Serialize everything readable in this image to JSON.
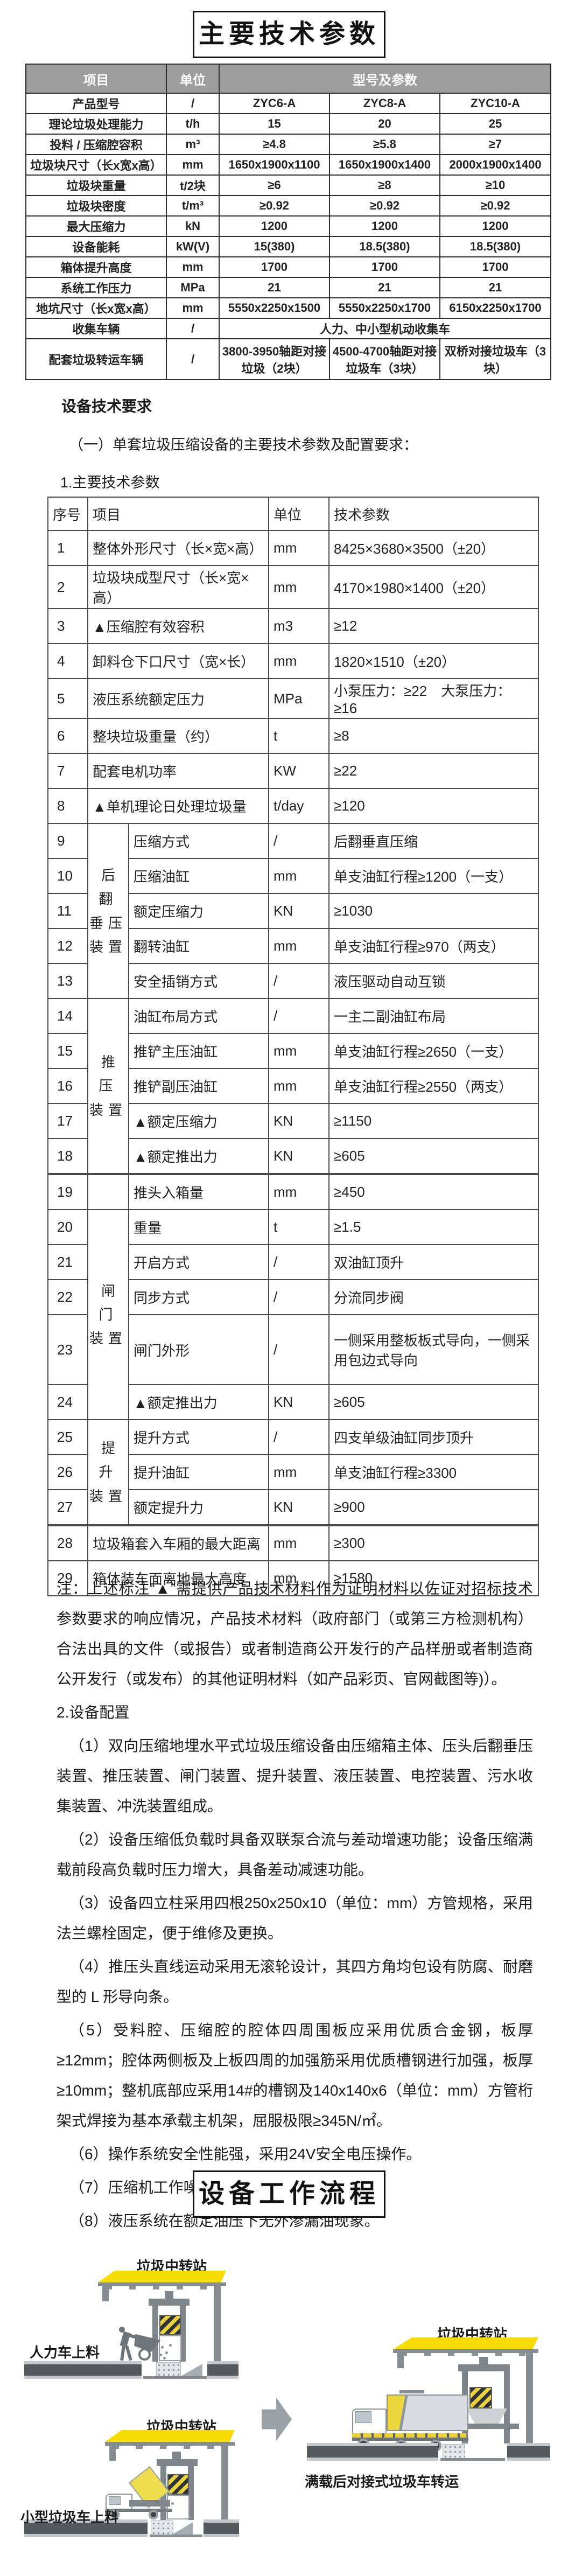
{
  "title_params": "主要技术参数",
  "title_flow": "设备工作流程",
  "colors": {
    "accent_yellow": "#f6dc00",
    "header_gray": "#9d9d9d",
    "structure_gray": "#7e868c",
    "road_dark": "#53585c"
  },
  "sections": {
    "req_heading": "设备技术要求",
    "req_sub": "（一）单套垃圾压缩设备的主要技术参数及配置要求：",
    "params_heading": "1.主要技术参数"
  },
  "table1": {
    "header": [
      "项目",
      "单位",
      "型号及参数"
    ],
    "rows": [
      [
        "产品型号",
        "/",
        "ZYC6-A",
        "ZYC8-A",
        "ZYC10-A"
      ],
      [
        "理论垃圾处理能力",
        "t/h",
        "15",
        "20",
        "25"
      ],
      [
        "投料 / 压缩腔容积",
        "m³",
        "≥4.8",
        "≥5.8",
        "≥7"
      ],
      [
        "垃圾块尺寸（长x宽x高）",
        "mm",
        "1650x1900x1100",
        "1650x1900x1400",
        "2000x1900x1400"
      ],
      [
        "垃圾块重量",
        "t/2块",
        "≥6",
        "≥8",
        "≥10"
      ],
      [
        "垃圾块密度",
        "t/m³",
        "≥0.92",
        "≥0.92",
        "≥0.92"
      ],
      [
        "最大压缩力",
        "kN",
        "1200",
        "1200",
        "1200"
      ],
      [
        "设备能耗",
        "kW(V)",
        "15(380)",
        "18.5(380)",
        "18.5(380)"
      ],
      [
        "箱体提升高度",
        "mm",
        "1700",
        "1700",
        "1700"
      ],
      [
        "系统工作压力",
        "MPa",
        "21",
        "21",
        "21"
      ],
      [
        "地坑尺寸（长x宽x高）",
        "mm",
        "5550x2250x1500",
        "5550x2250x1700",
        "6150x2250x1700"
      ],
      [
        "收集车辆",
        "/",
        {
          "t": "人力、中小型机动收集车",
          "cs": 3
        }
      ],
      [
        "配套垃圾转运车辆",
        "/",
        "3800-3950轴距对接垃圾（2块）",
        "4500-4700轴距对接垃圾车（3块）",
        "双桥对接垃圾车（3块）"
      ]
    ]
  },
  "table2": {
    "header": [
      "序号",
      "项目",
      "单位",
      "技术参数"
    ],
    "rows": [
      {
        "no": "1",
        "item": {
          "t": "整体外形尺寸（长×宽×高）",
          "cs": 2
        },
        "unit": "mm",
        "val": "8425×3680×3500（±20）"
      },
      {
        "no": "2",
        "item": {
          "t": "垃圾块成型尺寸（长×宽×高）",
          "cs": 2
        },
        "unit": "mm",
        "val": "4170×1980×1400（±20）"
      },
      {
        "no": "3",
        "item": {
          "t": "▲压缩腔有效容积",
          "cs": 2
        },
        "unit": "m3",
        "val": "≥12"
      },
      {
        "no": "4",
        "item": {
          "t": "卸料仓下口尺寸（宽×长）",
          "cs": 2
        },
        "unit": "mm",
        "val": "1820×1510（±20）"
      },
      {
        "no": "5",
        "item": {
          "t": "液压系统额定压力",
          "cs": 2
        },
        "unit": "MPa",
        "val": "小泵压力：≥22　大泵压力：≥16"
      },
      {
        "no": "6",
        "item": {
          "t": "整块垃圾重量（约）",
          "cs": 2
        },
        "unit": "t",
        "val": "≥8"
      },
      {
        "no": "7",
        "item": {
          "t": "配套电机功率",
          "cs": 2
        },
        "unit": "KW",
        "val": "≥22"
      },
      {
        "no": "8",
        "item": {
          "t": "▲单机理论日处理垃圾量",
          "cs": 2
        },
        "unit": "t/day",
        "val": "≥120"
      },
      {
        "no": "9",
        "group": {
          "t": "后翻\n垂压\n装置",
          "rs": 5
        },
        "item": "压缩方式",
        "unit": "/",
        "val": "后翻垂直压缩"
      },
      {
        "no": "10",
        "item": "压缩油缸",
        "unit": "mm",
        "val": "单支油缸行程≥1200（一支）"
      },
      {
        "no": "11",
        "item": "额定压缩力",
        "unit": "KN",
        "val": "≥1030"
      },
      {
        "no": "12",
        "item": "翻转油缸",
        "unit": "mm",
        "val": "单支油缸行程≥970（两支）"
      },
      {
        "no": "13",
        "item": "安全插销方式",
        "unit": "/",
        "val": "液压驱动自动互锁"
      },
      {
        "no": "14",
        "group": {
          "t": "推压\n装置",
          "rs": 5
        },
        "item": "油缸布局方式",
        "unit": "/",
        "val": "一主二副油缸布局"
      },
      {
        "no": "15",
        "item": "推铲主压油缸",
        "unit": "mm",
        "val": "单支油缸行程≥2650（一支）"
      },
      {
        "no": "16",
        "item": "推铲副压油缸",
        "unit": "mm",
        "val": "单支油缸行程≥2550（两支）"
      },
      {
        "no": "17",
        "item": "▲额定压缩力",
        "unit": "KN",
        "val": "≥1150"
      },
      {
        "no": "18",
        "item": "▲额定推出力",
        "unit": "KN",
        "val": "≥605"
      },
      {
        "no": "19",
        "sep": true,
        "group": {
          "t": "",
          "rs": 1
        },
        "item": "推头入箱量",
        "unit": "mm",
        "val": "≥450"
      },
      {
        "no": "20",
        "group": {
          "t": "闸门\n装置",
          "rs": 5
        },
        "item": "重量",
        "unit": "t",
        "val": "≥1.5"
      },
      {
        "no": "21",
        "item": "开启方式",
        "unit": "/",
        "val": "双油缸顶升"
      },
      {
        "no": "22",
        "item": "同步方式",
        "unit": "/",
        "val": "分流同步阀"
      },
      {
        "no": "23",
        "tall": true,
        "item": "闸门外形",
        "unit": "/",
        "val": "一侧采用整板板式导向，一侧采用包边式导向"
      },
      {
        "no": "24",
        "item": "▲额定推出力",
        "unit": "KN",
        "val": "≥605"
      },
      {
        "no": "25",
        "group": {
          "t": "提升\n装置",
          "rs": 3
        },
        "item": "提升方式",
        "unit": "/",
        "val": "四支单级油缸同步顶升"
      },
      {
        "no": "26",
        "item": "提升油缸",
        "unit": "mm",
        "val": "单支油缸行程≥3300"
      },
      {
        "no": "27",
        "item": "额定提升力",
        "unit": "KN",
        "val": "≥900"
      },
      {
        "no": "28",
        "sep": true,
        "item": {
          "t": "垃圾箱套入车厢的最大距离",
          "cs": 2
        },
        "unit": "mm",
        "val": "≥300"
      },
      {
        "no": "29",
        "item": {
          "t": "箱体装车面离地最大高度",
          "cs": 2
        },
        "unit": "mm",
        "val": "≥1580"
      }
    ]
  },
  "note": "注：上述标注“▲”需提供产品技术材料作为证明材料以佐证对招标技术参数要求的响应情况，产品技术材料（政府部门（或第三方检测机构）合法出具的文件（或报告）或者制造商公开发行的产品样册或者制造商公开发行（或发布）的其他证明材料（如产品彩页、官网截图等)）。",
  "config": {
    "heading": "2.设备配置",
    "items": [
      "（1）双向压缩地埋水平式垃圾压缩设备由压缩箱主体、压头后翻垂压装置、推压装置、闸门装置、提升装置、液压装置、电控装置、污水收集装置、冲洗装置组成。",
      "（2）设备压缩低负载时具备双联泵合流与差动增速功能；设备压缩满载前段高负载时压力增大，具备差动减速功能。",
      "（3）设备四立柱采用四根250x250x10（单位：mm）方管规格，采用法兰螺栓固定，便于维修及更换。",
      "（4）推压头直线运动采用无滚轮设计，其四方角均包设有防腐、耐磨型的 L 形导向条。",
      "（5）受料腔、压缩腔的腔体四周围板应采用优质合金钢，板厚≥12mm；腔体两侧板及上板四周的加强筋采用优质槽钢进行加强，板厚≥10mm；整机底部应采用14#的槽钢及140x140x6（单位：mm）方管桁架式焊接为基本承载主机架，屈服极限≥345N/㎡。",
      "（6）操作系统安全性能强，采用24V安全电压操作。",
      "（7）压缩机工作噪声符合相应国家标准。",
      "（8）液压系统在额定油压下无外渗漏油现象。"
    ]
  },
  "flow": {
    "d1": {
      "station": "垃圾中转站",
      "label": "人力车上料"
    },
    "d2": {
      "station": "垃圾中转站",
      "label": "小型垃圾车上料"
    },
    "d3": {
      "station": "垃圾中转站",
      "label": "满载后对接式垃圾车转运"
    }
  }
}
